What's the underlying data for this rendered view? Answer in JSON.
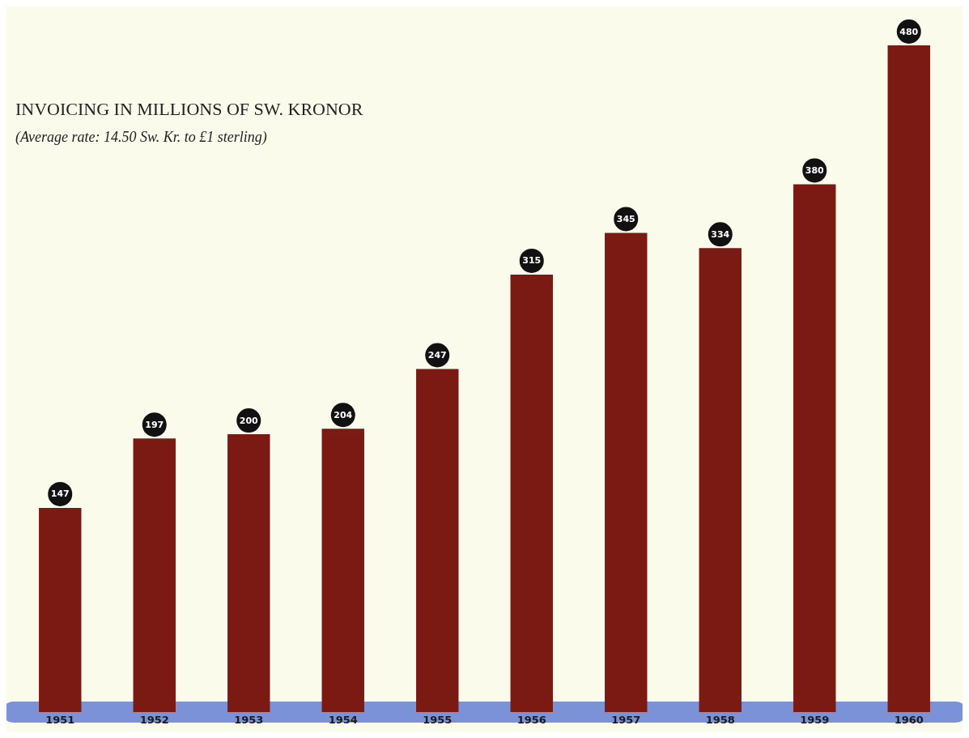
{
  "chart_data": {
    "type": "bar",
    "title": "INVOICING IN MILLIONS OF SW. KRONOR",
    "subtitle": "(Average rate: 14.50 Sw. Kr. to £1 sterling)",
    "categories": [
      "1951",
      "1952",
      "1953",
      "1954",
      "1955",
      "1956",
      "1957",
      "1958",
      "1959",
      "1960"
    ],
    "values": [
      147,
      197,
      200,
      204,
      247,
      315,
      345,
      334,
      380,
      480
    ],
    "color": "#7a1a12",
    "data_labels": true
  }
}
